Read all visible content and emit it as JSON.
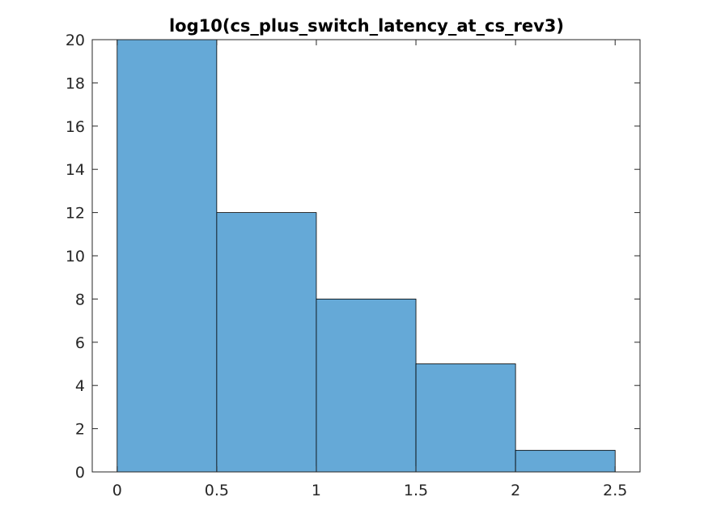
{
  "chart_data": {
    "type": "bar",
    "subtype": "histogram",
    "title": "log10(cs_plus_switch_latency_at_cs_rev3)",
    "xlabel": "",
    "ylabel": "",
    "bin_edges": [
      0,
      0.5,
      1,
      1.5,
      2,
      2.5
    ],
    "values": [
      20,
      12,
      8,
      5,
      1
    ],
    "xlim": [
      -0.125,
      2.625
    ],
    "ylim": [
      0,
      20
    ],
    "x_ticks": [
      0,
      0.5,
      1,
      1.5,
      2,
      2.5
    ],
    "x_tick_labels": [
      "0",
      "0.5",
      "1",
      "1.5",
      "2",
      "2.5"
    ],
    "y_ticks": [
      0,
      2,
      4,
      6,
      8,
      10,
      12,
      14,
      16,
      18,
      20
    ],
    "y_tick_labels": [
      "0",
      "2",
      "4",
      "6",
      "8",
      "10",
      "12",
      "14",
      "16",
      "18",
      "20"
    ],
    "grid": false,
    "bar_color": "#65a9d7",
    "edge_color": "#000000",
    "axis_color": "#262626"
  }
}
